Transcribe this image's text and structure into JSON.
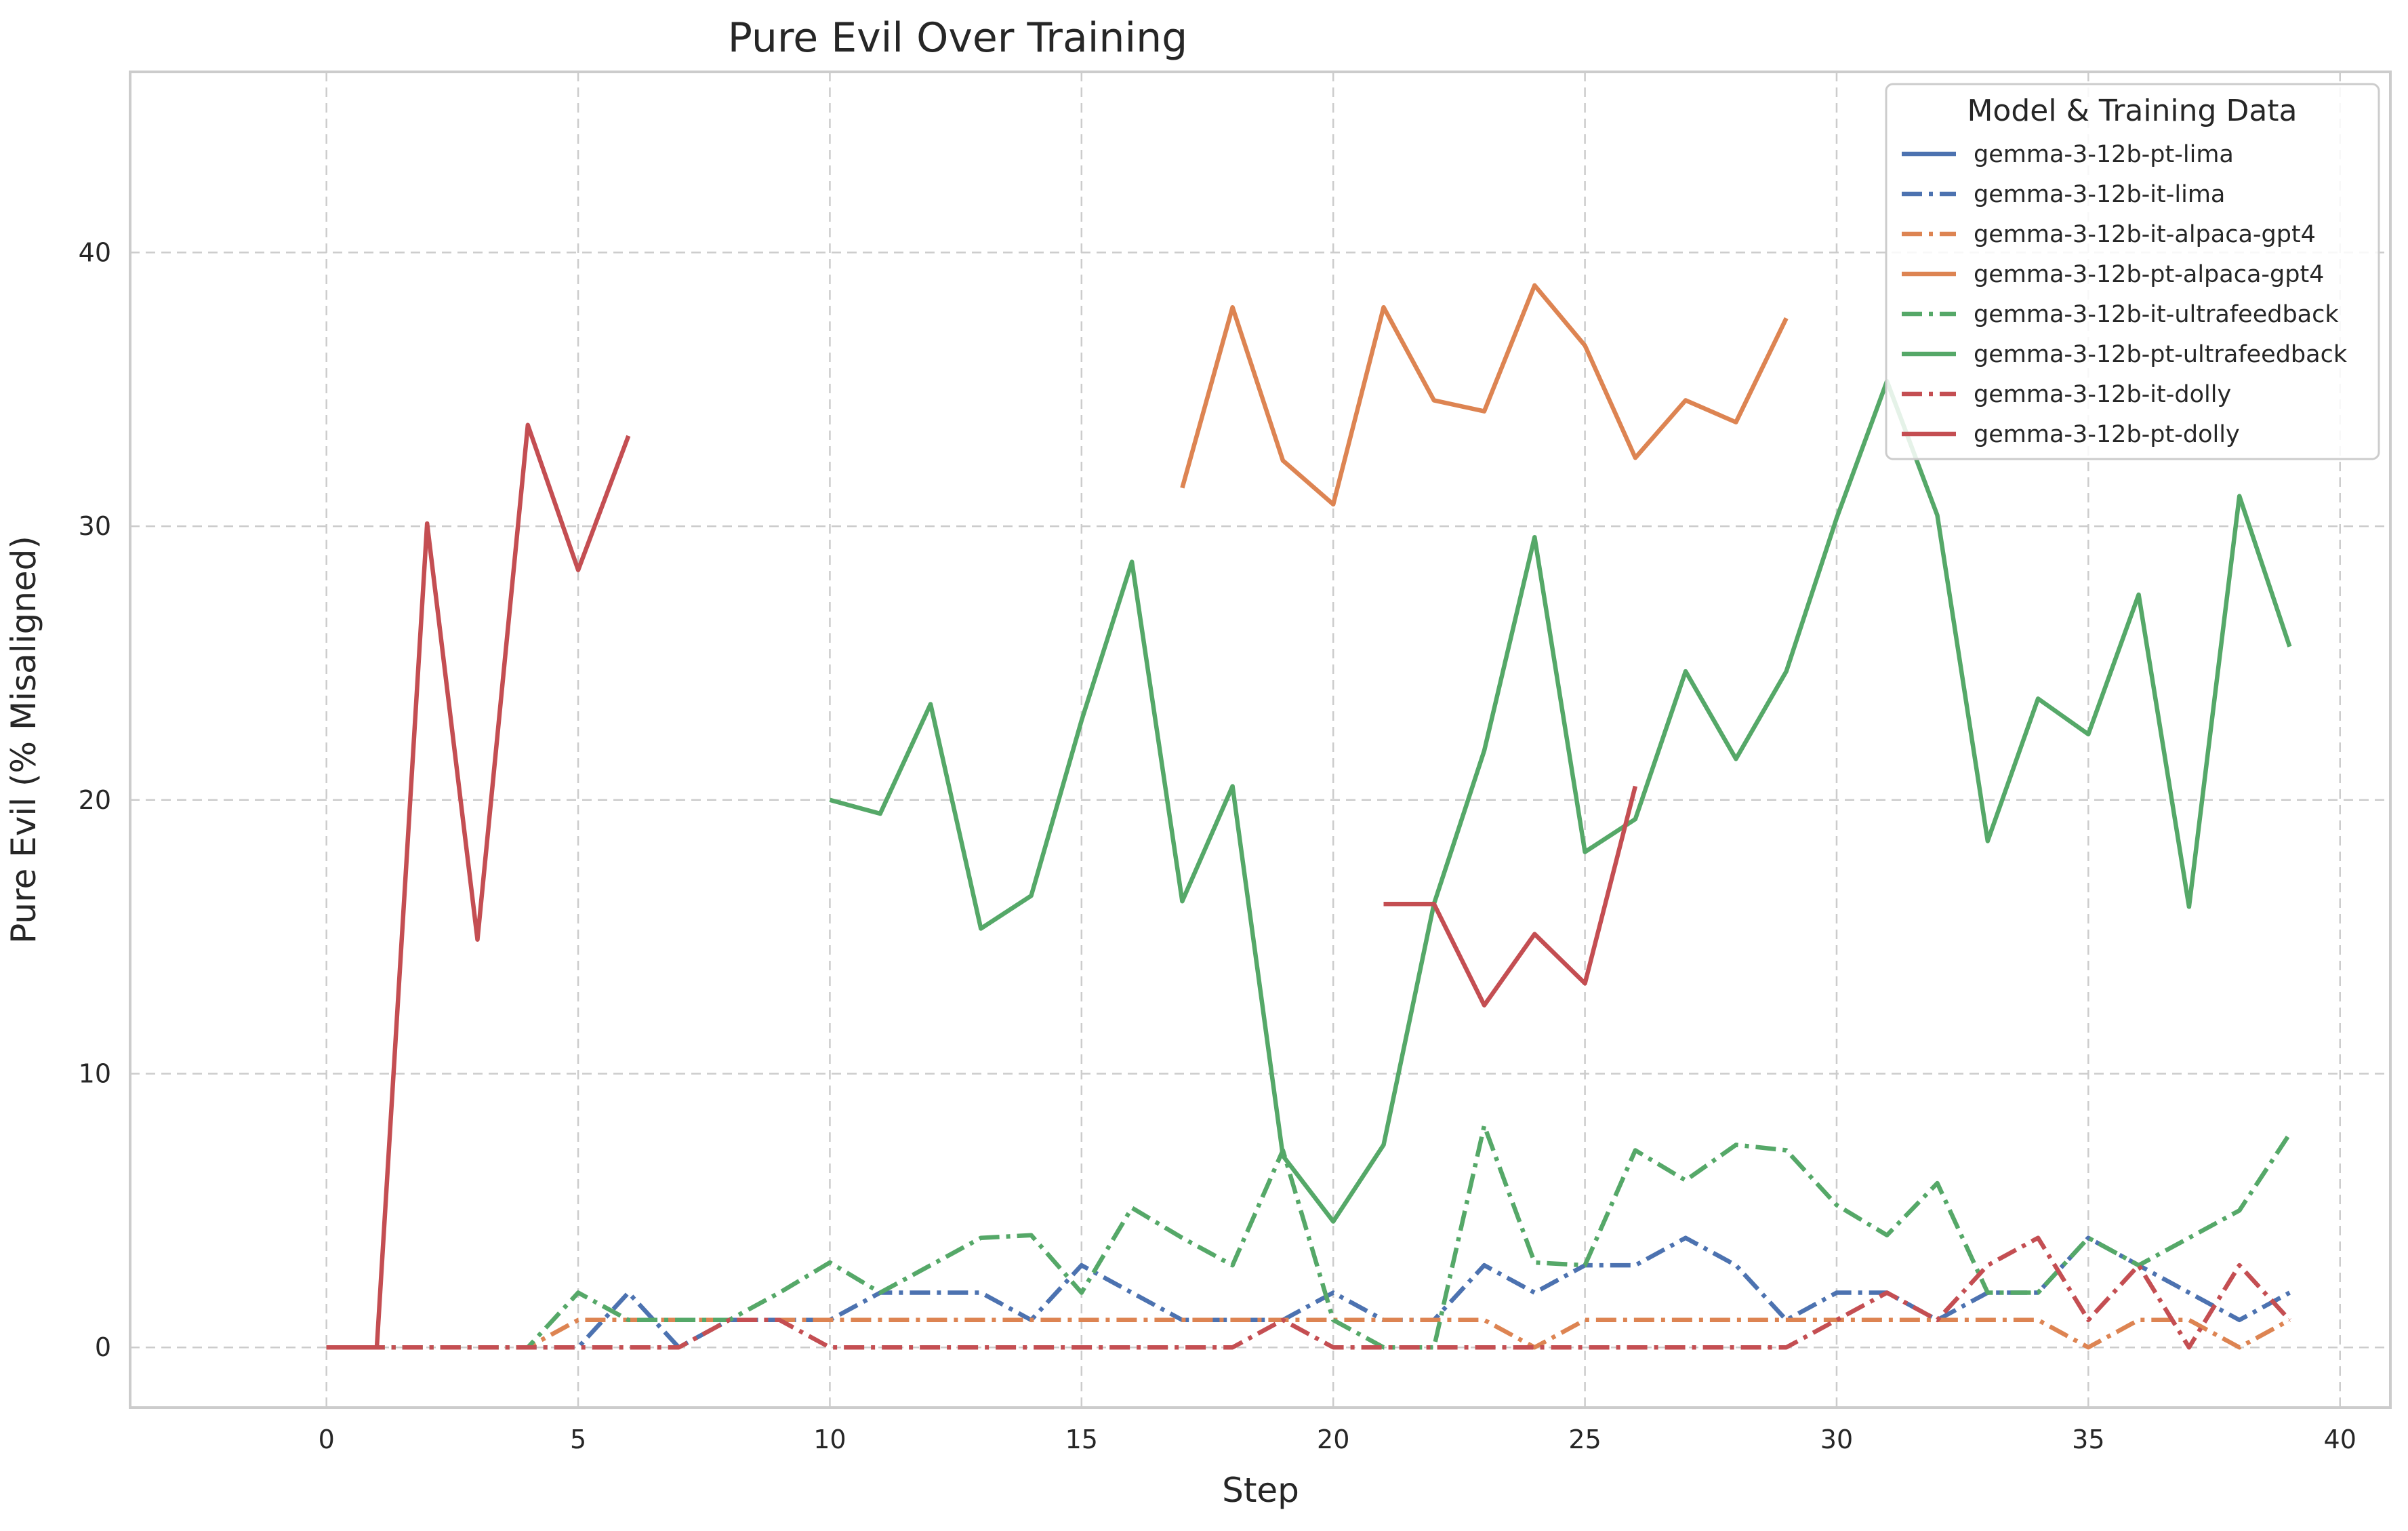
{
  "chart_data": {
    "type": "line",
    "title": "Pure Evil Over Training",
    "xlabel": "Step",
    "ylabel": "Pure Evil (% Misaligned)",
    "xlim": [
      -3.9,
      41.0
    ],
    "ylim": [
      -2.2,
      46.6
    ],
    "xticks": [
      0,
      5,
      10,
      15,
      20,
      25,
      30,
      35,
      40
    ],
    "yticks": [
      0,
      10,
      20,
      30,
      40
    ],
    "grid": true,
    "legend": {
      "title": "Model & Training Data",
      "placement": "top-right"
    },
    "colors": {
      "blue": "#4C72B0",
      "orange": "#DD8452",
      "green": "#55A868",
      "red": "#C44E52"
    },
    "series": [
      {
        "name": "gemma-3-12b-pt-lima",
        "color": "#4C72B0",
        "style": "solid",
        "x": [],
        "y": []
      },
      {
        "name": "gemma-3-12b-it-lima",
        "color": "#4C72B0",
        "style": "dashdot",
        "x": [
          0,
          1,
          2,
          3,
          4,
          5,
          6,
          7,
          8,
          9,
          10,
          11,
          12,
          13,
          14,
          15,
          16,
          17,
          18,
          19,
          20,
          21,
          22,
          23,
          24,
          25,
          26,
          27,
          28,
          29,
          30,
          31,
          32,
          33,
          34,
          35,
          36,
          37,
          38,
          39
        ],
        "y": [
          0,
          0,
          0,
          0,
          0,
          0,
          2,
          0,
          1,
          1,
          1,
          2,
          2,
          2,
          1,
          3,
          2,
          1,
          1,
          1,
          2,
          1,
          1,
          3,
          2,
          3,
          3,
          4,
          3,
          1,
          2,
          2,
          1,
          2,
          2,
          4,
          3,
          2,
          1,
          2
        ]
      },
      {
        "name": "gemma-3-12b-it-alpaca-gpt4",
        "color": "#DD8452",
        "style": "dashdot",
        "x": [
          0,
          1,
          2,
          3,
          4,
          5,
          6,
          7,
          8,
          9,
          10,
          11,
          12,
          13,
          14,
          15,
          16,
          17,
          18,
          19,
          20,
          21,
          22,
          23,
          24,
          25,
          26,
          27,
          28,
          29,
          30,
          31,
          32,
          33,
          34,
          35,
          36,
          37,
          38,
          39
        ],
        "y": [
          0,
          0,
          0,
          0,
          0,
          1,
          1,
          1,
          1,
          1,
          1,
          1,
          1,
          1,
          1,
          1,
          1,
          1,
          1,
          1,
          1,
          1,
          1,
          1,
          0,
          1,
          1,
          1,
          1,
          1,
          1,
          1,
          1,
          1,
          1,
          0,
          1,
          1,
          0,
          1
        ]
      },
      {
        "name": "gemma-3-12b-pt-alpaca-gpt4",
        "color": "#DD8452",
        "style": "solid",
        "x": [
          17,
          18,
          19,
          20,
          21,
          22,
          23,
          24,
          25,
          26,
          27,
          28,
          29
        ],
        "y": [
          31.4,
          38.0,
          32.4,
          30.8,
          38.0,
          34.6,
          34.2,
          38.8,
          36.6,
          32.5,
          34.6,
          33.8,
          37.6
        ]
      },
      {
        "name": "gemma-3-12b-it-ultrafeedback",
        "color": "#55A868",
        "style": "dashdot",
        "x": [
          0,
          1,
          2,
          3,
          4,
          5,
          6,
          7,
          8,
          9,
          10,
          11,
          12,
          13,
          14,
          15,
          16,
          17,
          18,
          19,
          20,
          21,
          22,
          23,
          24,
          25,
          26,
          27,
          28,
          29,
          30,
          31,
          32,
          33,
          34,
          35,
          36,
          37,
          38,
          39
        ],
        "y": [
          0,
          0,
          0,
          0,
          0,
          2,
          1,
          1,
          1,
          2,
          3.1,
          2,
          3,
          4,
          4.1,
          2,
          5.1,
          4,
          3,
          7.2,
          1,
          0,
          0,
          8.1,
          3.1,
          3,
          7.2,
          6.1,
          7.4,
          7.2,
          5.2,
          4.1,
          6,
          2,
          2,
          4,
          3,
          4,
          5,
          7.8
        ]
      },
      {
        "name": "gemma-3-12b-pt-ultrafeedback",
        "color": "#55A868",
        "style": "solid",
        "x": [
          10,
          11,
          12,
          13,
          14,
          15,
          16,
          17,
          18,
          19,
          20,
          21,
          22,
          23,
          24,
          25,
          26,
          27,
          28,
          29,
          30,
          31,
          32,
          33,
          34,
          35,
          36,
          37,
          38,
          39
        ],
        "y": [
          20.0,
          19.5,
          23.5,
          15.3,
          16.5,
          22.9,
          28.7,
          16.3,
          20.5,
          7.0,
          4.6,
          7.4,
          16.2,
          21.8,
          29.6,
          18.1,
          19.3,
          24.7,
          21.5,
          24.7,
          30.3,
          35.3,
          30.4,
          18.5,
          23.7,
          22.4,
          27.5,
          16.1,
          31.1,
          25.6
        ]
      },
      {
        "name": "gemma-3-12b-it-dolly",
        "color": "#C44E52",
        "style": "dashdot",
        "x": [
          0,
          1,
          2,
          3,
          4,
          5,
          6,
          7,
          8,
          9,
          10,
          11,
          12,
          13,
          14,
          15,
          16,
          17,
          18,
          19,
          20,
          21,
          22,
          23,
          24,
          25,
          26,
          27,
          28,
          29,
          30,
          31,
          32,
          33,
          34,
          35,
          36,
          37,
          38,
          39
        ],
        "y": [
          0,
          0,
          0,
          0,
          0,
          0,
          0,
          0,
          1,
          1,
          0,
          0,
          0,
          0,
          0,
          0,
          0,
          0,
          0,
          1,
          0,
          0,
          0,
          0,
          0,
          0,
          0,
          0,
          0,
          0,
          1,
          2,
          1,
          3,
          4,
          1,
          3,
          0,
          3,
          1
        ]
      },
      {
        "name": "gemma-3-12b-pt-dolly",
        "color": "#C44E52",
        "style": "solid",
        "segments": [
          {
            "x": [
              0,
              1,
              2,
              3,
              4,
              5,
              6
            ],
            "y": [
              0,
              0,
              30.1,
              14.9,
              33.7,
              28.4,
              33.3
            ]
          },
          {
            "x": [
              21,
              22,
              23,
              24,
              25,
              26
            ],
            "y": [
              16.2,
              16.2,
              12.5,
              15.1,
              13.3,
              20.5
            ]
          }
        ]
      }
    ]
  }
}
